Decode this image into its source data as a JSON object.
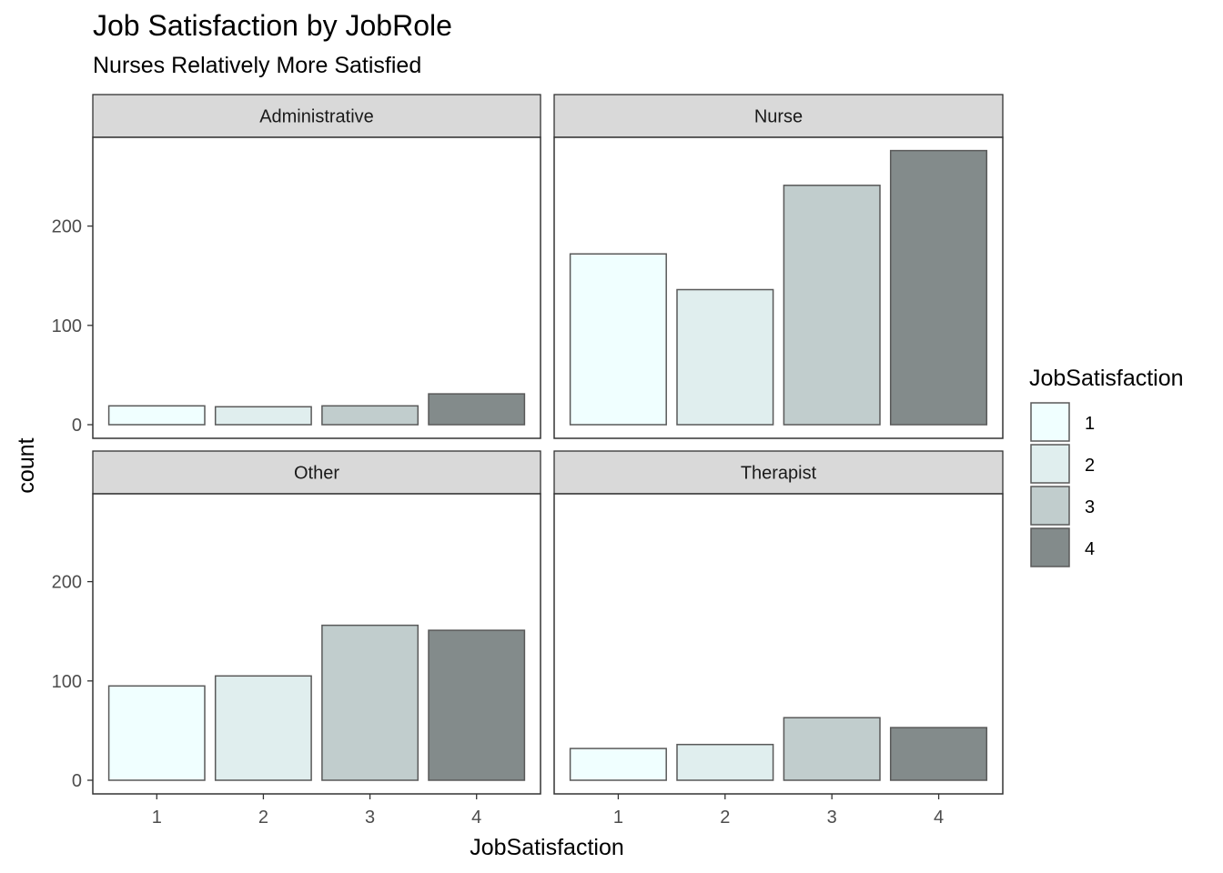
{
  "chart_data": {
    "type": "bar",
    "title": "Job Satisfaction by JobRole",
    "subtitle": "Nurses Relatively More Satisfied",
    "xlabel": "JobSatisfaction",
    "ylabel": "count",
    "ylim": [
      0,
      290
    ],
    "yticks": [
      0,
      100,
      200
    ],
    "categories": [
      "1",
      "2",
      "3",
      "4"
    ],
    "legend": {
      "title": "JobSatisfaction",
      "position": "right",
      "entries": [
        "1",
        "2",
        "3",
        "4"
      ]
    },
    "colors": {
      "1": "#f0ffff",
      "2": "#e0eeee",
      "3": "#c1cdcd",
      "4": "#838b8b",
      "bar_outline": "#595959",
      "strip_fill": "#d9d9d9",
      "panel_border": "#333333"
    },
    "facets": [
      {
        "name": "Administrative",
        "values": [
          19,
          18,
          19,
          31
        ]
      },
      {
        "name": "Nurse",
        "values": [
          172,
          136,
          241,
          276
        ]
      },
      {
        "name": "Other",
        "values": [
          95,
          105,
          156,
          151
        ]
      },
      {
        "name": "Therapist",
        "values": [
          32,
          36,
          63,
          53
        ]
      }
    ]
  }
}
